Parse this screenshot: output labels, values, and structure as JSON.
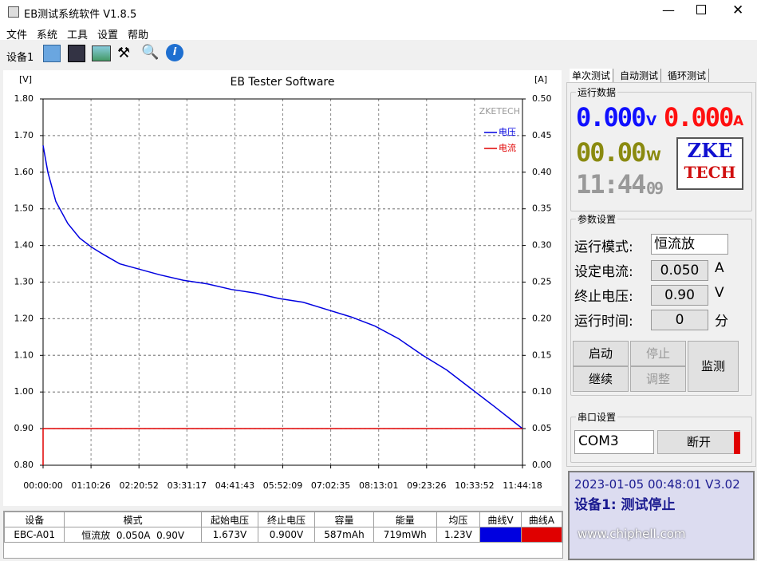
{
  "window": {
    "title": "EB测试系统软件 V1.8.5"
  },
  "menu": [
    "文件",
    "系统",
    "工具",
    "设置",
    "帮助"
  ],
  "toolbar": {
    "device": "设备1"
  },
  "chart_data": {
    "type": "line",
    "title": "EB Tester Software",
    "y_label": "[V]",
    "y2_label": "[A]",
    "watermark": "ZKETECH",
    "legend": "upper right",
    "grid": true,
    "series": [
      {
        "name": "电压",
        "color": "#0000e0",
        "axis": "y",
        "x": [
          0,
          422,
          1125,
          2180,
          3234,
          4289,
          5344,
          6750,
          8508,
          10265,
          12375,
          14484,
          16593,
          18702,
          20812,
          22921,
          25030,
          27140,
          29249,
          31358,
          33468,
          35577,
          37686,
          39795,
          42258
        ],
        "values": [
          1.673,
          1.6,
          1.52,
          1.46,
          1.42,
          1.395,
          1.375,
          1.35,
          1.335,
          1.32,
          1.305,
          1.295,
          1.28,
          1.27,
          1.255,
          1.245,
          1.225,
          1.205,
          1.18,
          1.145,
          1.1,
          1.06,
          1.01,
          0.96,
          0.9
        ]
      },
      {
        "name": "电流",
        "color": "#e00000",
        "axis": "y2",
        "x": [
          0,
          0,
          42258
        ],
        "values": [
          0,
          0.05,
          0.05
        ]
      }
    ],
    "xlim": [
      0,
      42258
    ],
    "xticks": [
      {
        "value": 0,
        "label": "00:00:00"
      },
      {
        "value": 4226,
        "label": "01:10:26"
      },
      {
        "value": 8452,
        "label": "02:20:52"
      },
      {
        "value": 12677,
        "label": "03:31:17"
      },
      {
        "value": 16903,
        "label": "04:41:43"
      },
      {
        "value": 21129,
        "label": "05:52:09"
      },
      {
        "value": 25355,
        "label": "07:02:35"
      },
      {
        "value": 29581,
        "label": "08:13:01"
      },
      {
        "value": 33806,
        "label": "09:23:26"
      },
      {
        "value": 38032,
        "label": "10:33:52"
      },
      {
        "value": 42258,
        "label": "11:44:18"
      }
    ],
    "ylim": [
      0.8,
      1.8
    ],
    "yticks": [
      {
        "value": 0.8,
        "label": "0.80"
      },
      {
        "value": 0.9,
        "label": "0.90"
      },
      {
        "value": 1,
        "label": "1.00"
      },
      {
        "value": 1.1,
        "label": "1.10"
      },
      {
        "value": 1.2,
        "label": "1.20"
      },
      {
        "value": 1.3,
        "label": "1.30"
      },
      {
        "value": 1.4,
        "label": "1.40"
      },
      {
        "value": 1.5,
        "label": "1.50"
      },
      {
        "value": 1.6,
        "label": "1.60"
      },
      {
        "value": 1.7,
        "label": "1.70"
      },
      {
        "value": 1.8,
        "label": "1.80"
      }
    ],
    "y2lim": [
      0,
      0.5
    ],
    "y2ticks": [
      {
        "value": 0,
        "label": "0.00"
      },
      {
        "value": 0.05,
        "label": "0.05"
      },
      {
        "value": 0.1,
        "label": "0.10"
      },
      {
        "value": 0.15,
        "label": "0.15"
      },
      {
        "value": 0.2,
        "label": "0.20"
      },
      {
        "value": 0.25,
        "label": "0.25"
      },
      {
        "value": 0.3,
        "label": "0.30"
      },
      {
        "value": 0.35,
        "label": "0.35"
      },
      {
        "value": 0.4,
        "label": "0.40"
      },
      {
        "value": 0.45,
        "label": "0.45"
      },
      {
        "value": 0.5,
        "label": "0.50"
      }
    ]
  },
  "tabs": [
    "单次测试",
    "自动测试",
    "循环测试"
  ],
  "run_data": {
    "title": "运行数据",
    "voltage": "0.000",
    "voltage_unit": "V",
    "current": "0.000",
    "current_unit": "A",
    "power": "00.00",
    "power_unit": "W",
    "time": "11:44",
    "seconds": "09",
    "logo_top": "ZKE",
    "logo_bottom": "TECH"
  },
  "params": {
    "title": "参数设置",
    "rows": [
      {
        "label": "运行模式:",
        "value": "恒流放"
      },
      {
        "label": "设定电流:",
        "value": "0.050",
        "unit": "A"
      },
      {
        "label": "终止电压:",
        "value": "0.90",
        "unit": "V"
      },
      {
        "label": "运行时间:",
        "value": "0",
        "unit": "分"
      }
    ],
    "buttons": [
      "启动",
      "停止",
      "继续",
      "调整",
      "监测"
    ]
  },
  "serial": {
    "title": "串口设置",
    "port": "COM3",
    "button": "断开"
  },
  "status": {
    "line1": "2023-01-05 00:48:01 V3.02",
    "line2": "设备1: 测试停止"
  },
  "table": {
    "headers": [
      "设备",
      "模式",
      "起始电压",
      "终止电压",
      "容量",
      "能量",
      "均压",
      "曲线V",
      "曲线A"
    ],
    "rows": [
      [
        "EBC-A01",
        "恒流放  0.050A  0.90V",
        "1.673V",
        "0.900V",
        "587mAh",
        "719mWh",
        "1.23V"
      ]
    ]
  },
  "watermark": "www.chiphell.com"
}
